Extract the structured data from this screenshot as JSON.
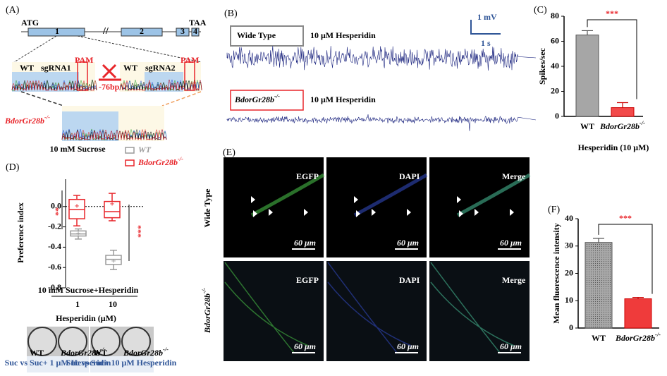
{
  "panel_labels": [
    "(A)",
    "(B)",
    "(C)",
    "(D)",
    "(E)",
    "(F)"
  ],
  "gene_map": {
    "start": "ATG",
    "stop": "TAA",
    "exons": [
      "1",
      "2",
      "3",
      "4"
    ],
    "wt": "WT",
    "sgrna1": "sgRNA1",
    "sgrna2": "sgRNA2",
    "pam": "PAM",
    "deletion": "-76bp",
    "mutant": "BdorGr28b-/-"
  },
  "recording": {
    "rows": [
      {
        "genotype": "Wide Type",
        "treatment": "10 μM Hesperidin"
      },
      {
        "genotype": "BdorGr28b-/-",
        "treatment": "10 μM Hesperidin"
      }
    ],
    "scale_v": "1 mV",
    "scale_t": "1 s"
  },
  "imaging": {
    "rows": [
      "Wide Type",
      "BdorGr28b-/-"
    ],
    "channels": [
      "EGFP",
      "DAPI",
      "Merge"
    ],
    "scale": "60 μm"
  },
  "assay": {
    "plate_labels": [
      "WT",
      "BdorGr28b-/-"
    ],
    "captions": [
      "Suc vs Suc+ 1 μM Hesperidin",
      "Suc vs Suc+ 10 μM Hesperidin"
    ]
  },
  "chart_data": [
    {
      "type": "bar",
      "categories": [
        "WT",
        "BdorGr28b-/-"
      ],
      "values": [
        65,
        7
      ],
      "errors": [
        3.5,
        4
      ],
      "colors": [
        "#a6a6a6",
        "#f24a4a"
      ],
      "ylim": [
        0,
        80
      ],
      "yticks": [
        0,
        20,
        40,
        60,
        80
      ],
      "y_label": "Spikes/sec",
      "x_label": "Hesperidin (10 μM)",
      "annotation": "***"
    },
    {
      "type": "box",
      "title": "10 mM Sucrose",
      "subtitle": "10 mM Sucrose+Hesperidin",
      "categories": [
        "1",
        "10"
      ],
      "x_label": "Hesperidin (μM)",
      "y_label": "Preference index",
      "ylim": [
        -0.8,
        0.2
      ],
      "yticks": [
        {
          "value": 0,
          "label": "0.0"
        },
        -0.2,
        -0.4,
        -0.6,
        -0.8
      ],
      "annotations": [
        "**",
        "***"
      ],
      "series": [
        {
          "name": "WT",
          "color": "#9a9a9a",
          "min": [
            -0.32,
            -0.62
          ],
          "q1": [
            -0.29,
            -0.57
          ],
          "median": [
            -0.27,
            -0.52
          ],
          "q3": [
            -0.24,
            -0.48
          ],
          "max": [
            -0.22,
            -0.43
          ],
          "mean": [
            -0.27,
            -0.54
          ]
        },
        {
          "name": "BdorGr28b-/-",
          "color": "#e8262b",
          "min": [
            -0.19,
            -0.14
          ],
          "q1": [
            -0.12,
            -0.11
          ],
          "median": [
            -0.03,
            -0.05
          ],
          "q3": [
            0.07,
            0.05
          ],
          "max": [
            0.11,
            0.13
          ],
          "mean": [
            0,
            0.02
          ]
        }
      ]
    },
    {
      "type": "bar",
      "categories": [
        "WT",
        "BdorGr28b-/-"
      ],
      "values": [
        31.3,
        10.7
      ],
      "errors": [
        1.5,
        0.5
      ],
      "colors": [
        "#9a9a9a",
        "#ef3b3b"
      ],
      "ylim": [
        0,
        40
      ],
      "yticks": [
        0,
        10,
        20,
        30,
        40
      ],
      "y_label": "Mean fluorescence intensity",
      "annotation": "***"
    }
  ]
}
